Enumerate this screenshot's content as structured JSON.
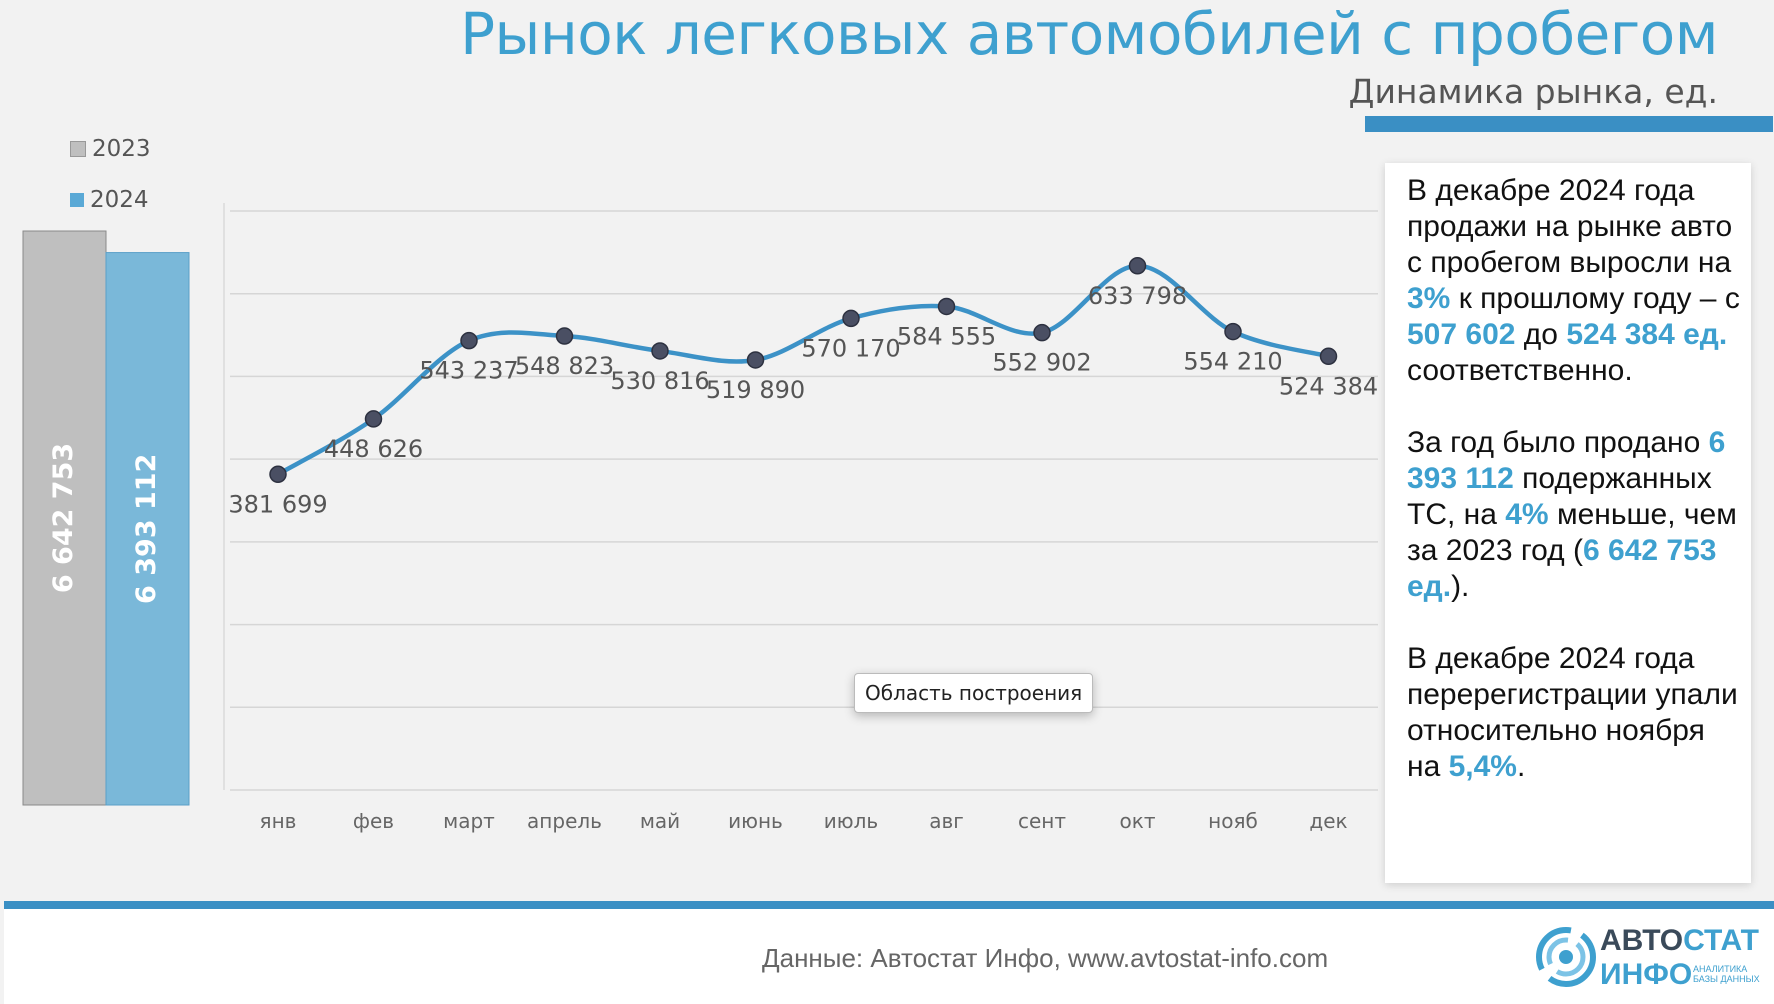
{
  "header": {
    "title": "Рынок легковых автомобилей с пробегом",
    "subtitle": "Динамика рынка, ед."
  },
  "legend": [
    {
      "label": "2023",
      "color": "#bfbfbf"
    },
    {
      "label": "2024",
      "color": "#7ab8d9"
    }
  ],
  "chart_data": [
    {
      "type": "bar",
      "categories": [
        "2023",
        "2024"
      ],
      "values": [
        6642753,
        6393112
      ],
      "value_labels": [
        "6 642 753",
        "6 393 112"
      ],
      "colors": [
        "#bfbfbf",
        "#7ab8d9"
      ],
      "legend_position": "top-left"
    },
    {
      "type": "line",
      "categories": [
        "янв",
        "фев",
        "март",
        "апрель",
        "май",
        "июнь",
        "июль",
        "авг",
        "сент",
        "окт",
        "нояб",
        "дек"
      ],
      "values": [
        381699,
        448626,
        543237,
        548823,
        530816,
        519890,
        570170,
        584555,
        552902,
        633798,
        554210,
        524384
      ],
      "value_labels": [
        "381 699",
        "448 626",
        "543 237",
        "548 823",
        "530 816",
        "519 890",
        "570 170",
        "584 555",
        "552 902",
        "633 798",
        "554 210",
        "524 384"
      ],
      "series_color": "#3c92c7",
      "ylim": [
        0,
        700000
      ],
      "grid": true
    }
  ],
  "tooltip": "Область построения",
  "info": {
    "p1": [
      "В декабре 2024 года продажи на рынке авто с пробегом выросли на ",
      "3%",
      " к прошлому году – с ",
      "507 602",
      " до ",
      "524 384 ед.",
      " соответственно."
    ],
    "p2": [
      "За год было продано ",
      "6 393 112",
      " подержанных ТС, на ",
      "4%",
      " меньше, чем за 2023 год (",
      "6 642 753 ед.",
      ")."
    ],
    "p3": [
      "В декабре 2024 года перерегистрации упали относительно ноября на ",
      "5,4%",
      "."
    ]
  },
  "footer": {
    "source": "Данные: Автостат Инфо, www.avtostat-info.com",
    "logo_word1a": "АВТО",
    "logo_word1b": "СТАТ",
    "logo_word2": "ИНФО",
    "logo_tag1": "АНАЛИТИКА",
    "logo_tag2": "БАЗЫ ДАННЫХ"
  }
}
